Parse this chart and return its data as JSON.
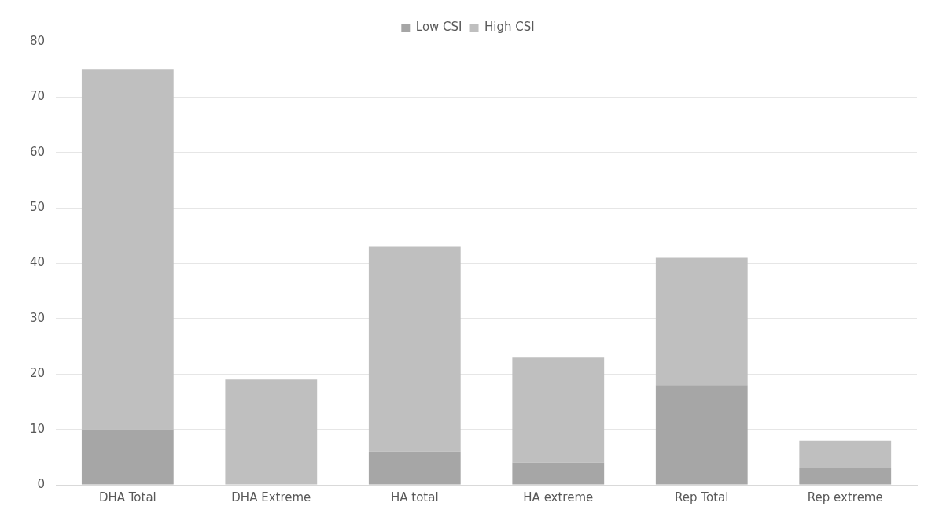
{
  "chart_data": {
    "type": "bar",
    "stacked": true,
    "categories": [
      "DHA Total",
      "DHA Extreme",
      "HA total",
      "HA extreme",
      "Rep Total",
      "Rep extreme"
    ],
    "series": [
      {
        "name": "Low CSI",
        "color": "#a6a6a6",
        "values": [
          10,
          0,
          6,
          4,
          18,
          3
        ]
      },
      {
        "name": "High CSI",
        "color": "#bfbfbf",
        "values": [
          65,
          19,
          37,
          19,
          23,
          5
        ]
      }
    ],
    "ylim": [
      0,
      80
    ],
    "yticks": [
      0,
      10,
      20,
      30,
      40,
      50,
      60,
      70,
      80
    ],
    "grid": "y",
    "legend": "top"
  }
}
